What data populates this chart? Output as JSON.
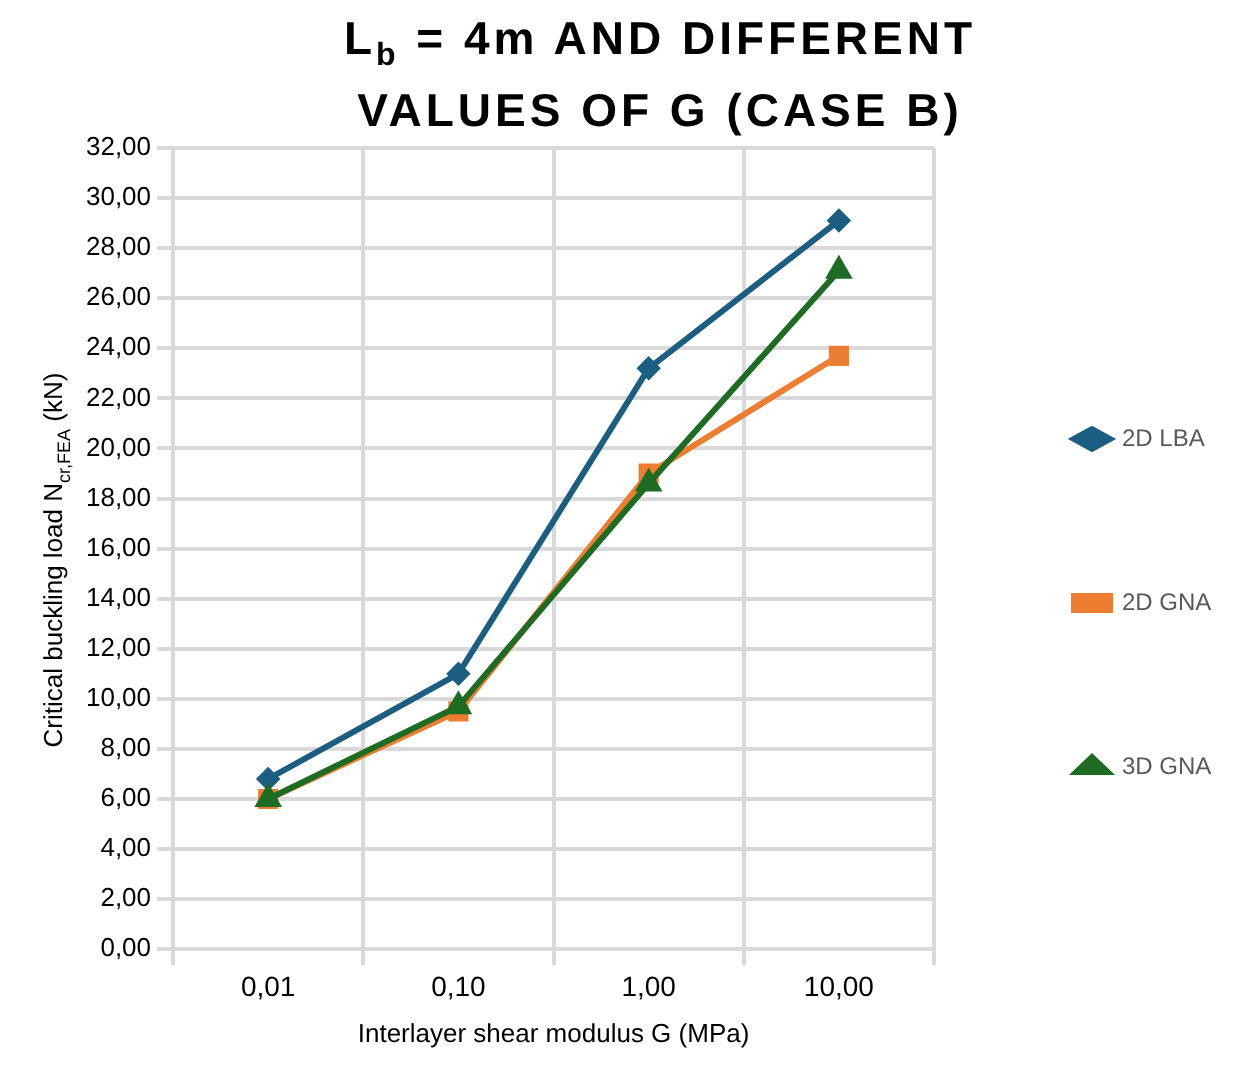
{
  "chart_data": {
    "type": "line",
    "title": "L$_{b}$ = 4m AND DIFFERENT VALUES OF G (CASE B)",
    "xlabel": "Interlayer shear modulus G (MPa)",
    "ylabel": "Critical buckling load N$_{cr,FEA}$ (kN)",
    "categories": [
      "0,01",
      "0,10",
      "1,00",
      "10,00"
    ],
    "series": [
      {
        "name": "2D LBA",
        "color": "#1b5e82",
        "marker": "diamond",
        "values": [
          6.8,
          11.0,
          23.2,
          29.1
        ]
      },
      {
        "name": "2D GNA",
        "color": "#ed7d31",
        "marker": "square",
        "values": [
          6.0,
          9.5,
          19.0,
          23.7
        ]
      },
      {
        "name": "3D GNA",
        "color": "#1e6b23",
        "marker": "triangle",
        "values": [
          6.0,
          9.7,
          18.6,
          27.1
        ]
      }
    ],
    "ylim": [
      0,
      32
    ],
    "yticks": [
      {
        "value": 0,
        "label": "0,00"
      },
      {
        "value": 2,
        "label": "2,00"
      },
      {
        "value": 4,
        "label": "4,00"
      },
      {
        "value": 6,
        "label": "6,00"
      },
      {
        "value": 8,
        "label": "8,00"
      },
      {
        "value": 10,
        "label": "10,00"
      },
      {
        "value": 12,
        "label": "12,00"
      },
      {
        "value": 14,
        "label": "14,00"
      },
      {
        "value": 16,
        "label": "16,00"
      },
      {
        "value": 18,
        "label": "18,00"
      },
      {
        "value": 20,
        "label": "20,00"
      },
      {
        "value": 22,
        "label": "22,00"
      },
      {
        "value": 24,
        "label": "24,00"
      },
      {
        "value": 26,
        "label": "26,00"
      },
      {
        "value": 28,
        "label": "28,00"
      },
      {
        "value": 30,
        "label": "30,00"
      },
      {
        "value": 32,
        "label": "32,00"
      }
    ],
    "grid": true,
    "legend": "right"
  }
}
